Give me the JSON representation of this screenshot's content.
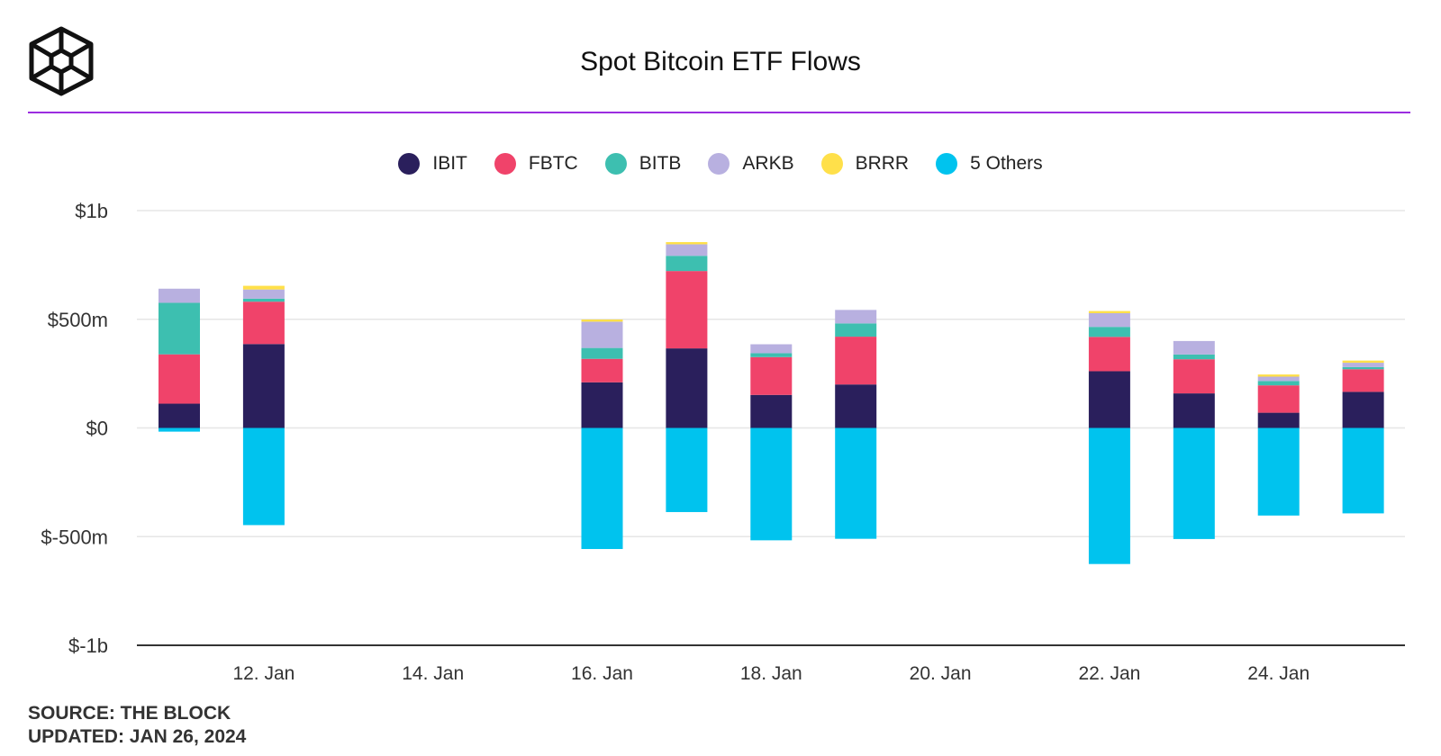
{
  "header": {
    "title": "Spot Bitcoin ETF Flows",
    "rule_color": "#9b2de0"
  },
  "logo": {
    "icon": "the-block-cube-logo"
  },
  "footer": {
    "source": "SOURCE: THE BLOCK",
    "updated": "UPDATED: JAN 26, 2024"
  },
  "chart_data": {
    "type": "bar",
    "stacked": true,
    "title": "Spot Bitcoin ETF Flows",
    "xlabel": "",
    "ylabel": "",
    "x": [
      "2024-01-11",
      "2024-01-12",
      "2024-01-16",
      "2024-01-17",
      "2024-01-18",
      "2024-01-19",
      "2024-01-22",
      "2024-01-23",
      "2024-01-24",
      "2024-01-25"
    ],
    "x_ticks": [
      "12. Jan",
      "14. Jan",
      "16. Jan",
      "18. Jan",
      "20. Jan",
      "22. Jan",
      "24. Jan"
    ],
    "ylim": [
      -1000000000,
      1000000000
    ],
    "y_ticks": [
      {
        "value": 1000000000,
        "label": "$1b"
      },
      {
        "value": 500000000,
        "label": "$500m"
      },
      {
        "value": 0,
        "label": "$0"
      },
      {
        "value": -500000000,
        "label": "$-500m"
      },
      {
        "value": -1000000000,
        "label": "$-1b"
      }
    ],
    "grid": true,
    "legend_position": "top-center",
    "series": [
      {
        "name": "IBIT",
        "color": "#2a1f5c",
        "values": [
          111700000,
          386000000,
          210000000,
          366000000,
          152000000,
          200000000,
          261000000,
          159000000,
          70000000,
          166000000
        ]
      },
      {
        "name": "FBTC",
        "color": "#f0436a",
        "values": [
          227000000,
          195000000,
          108000000,
          356000000,
          174000000,
          220000000,
          158000000,
          157000000,
          126000000,
          104000000
        ]
      },
      {
        "name": "BITB",
        "color": "#3dbfb0",
        "values": [
          237000000,
          14000000,
          50000000,
          70000000,
          18000000,
          61000000,
          46000000,
          22000000,
          20000000,
          10000000
        ]
      },
      {
        "name": "ARKB",
        "color": "#b8b0e0",
        "values": [
          65000000,
          42000000,
          121000000,
          53000000,
          41000000,
          62000000,
          63000000,
          62000000,
          20000000,
          20000000
        ]
      },
      {
        "name": "BRRR",
        "color": "#ffe04a",
        "values": [
          0,
          17000000,
          10000000,
          10000000,
          0,
          0,
          10000000,
          0,
          10000000,
          10000000
        ]
      },
      {
        "name": "5 Others",
        "color": "#00c3ee",
        "values": [
          -17000000,
          -447000000,
          -557000000,
          -387000000,
          -517000000,
          -510000000,
          -626000000,
          -511000000,
          -403000000,
          -393000000
        ]
      }
    ]
  }
}
